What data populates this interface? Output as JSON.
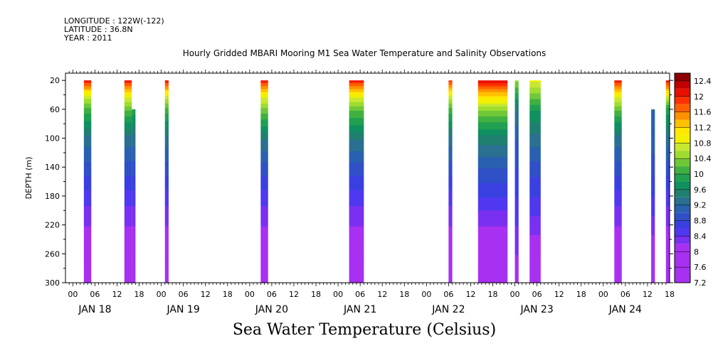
{
  "header": {
    "longitude": "LONGITUDE : 122W(-122)",
    "latitude": "LATITUDE : 36.8N",
    "year": "YEAR : 2011",
    "plot_title": "Hourly Gridded MBARI Mooring M1 Sea Water Temperature and Salinity Observations"
  },
  "chart_data": {
    "type": "heatmap",
    "title": "Sea Water Temperature (Celsius)",
    "ylabel": "DEPTH (m)",
    "xlabel": "",
    "y_ticks": [
      "20",
      "60",
      "100",
      "140",
      "180",
      "220",
      "260",
      "300"
    ],
    "ylim": [
      10,
      300
    ],
    "y_reversed": true,
    "x_start_hour": -2,
    "x_end_hour": 162,
    "hour_ticks": [
      "00",
      "06",
      "12",
      "18",
      "00",
      "06",
      "12",
      "18",
      "00",
      "06",
      "12",
      "18",
      "00",
      "06",
      "12",
      "18",
      "00",
      "06",
      "12",
      "18",
      "00",
      "06",
      "12",
      "18",
      "00",
      "06",
      "12",
      "18"
    ],
    "day_labels": [
      "JAN 18",
      "JAN 19",
      "JAN 20",
      "JAN 21",
      "JAN 22",
      "JAN 23",
      "JAN 24"
    ],
    "colorbar": {
      "levels": [
        "12.4",
        "12",
        "11.6",
        "11.2",
        "10.8",
        "10.4",
        "10",
        "9.6",
        "9.2",
        "8.8",
        "8.4",
        "8",
        "7.6",
        "7.2"
      ],
      "min": 7.2,
      "max": 12.6,
      "colors": [
        "#8b0000",
        "#c00000",
        "#e81000",
        "#ff3000",
        "#ff6000",
        "#ff9000",
        "#ffc000",
        "#ffe800",
        "#f0f000",
        "#c8e830",
        "#a0dc30",
        "#70c838",
        "#40b040",
        "#20a050",
        "#109060",
        "#208070",
        "#2a7090",
        "#2a60b0",
        "#3050c8",
        "#3a40e0",
        "#5038f0",
        "#7a30f0",
        "#a830f0",
        "#d000f0"
      ],
      "stops": [
        12.6,
        12.4,
        12.2,
        12.0,
        11.8,
        11.6,
        11.4,
        11.2,
        11.0,
        10.8,
        10.6,
        10.4,
        10.2,
        10.0,
        9.8,
        9.6,
        9.4,
        9.2,
        9.0,
        8.8,
        8.6,
        8.4,
        8.2,
        7.2
      ]
    },
    "columns": [
      {
        "start": 3,
        "end": 5,
        "profile": [
          [
            20,
            12.0
          ],
          [
            40,
            10.8
          ],
          [
            60,
            10.1
          ],
          [
            100,
            9.3
          ],
          [
            140,
            8.9
          ],
          [
            180,
            8.5
          ],
          [
            220,
            8.2
          ],
          [
            260,
            7.9
          ],
          [
            300,
            7.6
          ]
        ]
      },
      {
        "start": 14,
        "end": 16,
        "profile": [
          [
            20,
            12.0
          ],
          [
            40,
            10.9
          ],
          [
            60,
            10.2
          ],
          [
            100,
            9.3
          ],
          [
            140,
            8.9
          ],
          [
            180,
            8.5
          ],
          [
            220,
            8.2
          ],
          [
            260,
            7.9
          ],
          [
            300,
            7.5
          ]
        ]
      },
      {
        "start": 16,
        "end": 17,
        "profile": [
          [
            60,
            9.9
          ],
          [
            100,
            9.3
          ],
          [
            140,
            8.9
          ],
          [
            180,
            8.5
          ],
          [
            220,
            8.2
          ],
          [
            260,
            7.9
          ],
          [
            300,
            7.5
          ]
        ]
      },
      {
        "start": 25,
        "end": 26,
        "profile": [
          [
            20,
            12.0
          ],
          [
            40,
            10.8
          ],
          [
            60,
            10.1
          ],
          [
            100,
            9.3
          ],
          [
            140,
            8.9
          ],
          [
            180,
            8.5
          ],
          [
            220,
            8.2
          ],
          [
            260,
            7.9
          ],
          [
            300,
            7.6
          ]
        ]
      },
      {
        "start": 51,
        "end": 53,
        "profile": [
          [
            20,
            12.0
          ],
          [
            40,
            10.9
          ],
          [
            60,
            10.3
          ],
          [
            100,
            9.4
          ],
          [
            140,
            8.9
          ],
          [
            180,
            8.5
          ],
          [
            220,
            8.2
          ],
          [
            260,
            7.9
          ],
          [
            300,
            7.6
          ]
        ]
      },
      {
        "start": 75,
        "end": 79,
        "profile": [
          [
            20,
            12.0
          ],
          [
            40,
            10.9
          ],
          [
            60,
            10.2
          ],
          [
            100,
            9.4
          ],
          [
            140,
            8.9
          ],
          [
            180,
            8.5
          ],
          [
            220,
            8.2
          ],
          [
            260,
            7.8
          ],
          [
            300,
            7.5
          ]
        ]
      },
      {
        "start": 102,
        "end": 103,
        "profile": [
          [
            20,
            11.8
          ],
          [
            40,
            10.8
          ],
          [
            60,
            10.1
          ],
          [
            100,
            9.3
          ],
          [
            140,
            8.9
          ],
          [
            180,
            8.5
          ],
          [
            220,
            8.2
          ],
          [
            260,
            7.9
          ],
          [
            300,
            7.6
          ]
        ]
      },
      {
        "start": 110,
        "end": 118,
        "profile": [
          [
            20,
            12.1
          ],
          [
            40,
            11.2
          ],
          [
            60,
            10.4
          ],
          [
            100,
            9.5
          ],
          [
            140,
            9.0
          ],
          [
            180,
            8.6
          ],
          [
            220,
            8.2
          ],
          [
            260,
            7.8
          ],
          [
            300,
            7.4
          ]
        ]
      },
      {
        "start": 120,
        "end": 121,
        "profile": [
          [
            20,
            10.4
          ],
          [
            40,
            9.9
          ],
          [
            60,
            9.4
          ],
          [
            100,
            9.0
          ],
          [
            140,
            8.8
          ],
          [
            180,
            8.6
          ],
          [
            220,
            8.4
          ],
          [
            260,
            8.2
          ],
          [
            300,
            8.0
          ]
        ]
      },
      {
        "start": 124,
        "end": 127,
        "profile": [
          [
            20,
            10.8
          ],
          [
            40,
            10.3
          ],
          [
            60,
            9.8
          ],
          [
            100,
            9.3
          ],
          [
            140,
            8.9
          ],
          [
            180,
            8.6
          ],
          [
            220,
            8.3
          ],
          [
            260,
            8.0
          ],
          [
            300,
            7.7
          ]
        ]
      },
      {
        "start": 147,
        "end": 149,
        "profile": [
          [
            20,
            12.0
          ],
          [
            40,
            10.9
          ],
          [
            60,
            10.2
          ],
          [
            100,
            9.3
          ],
          [
            140,
            8.9
          ],
          [
            180,
            8.5
          ],
          [
            220,
            8.2
          ],
          [
            260,
            7.9
          ],
          [
            300,
            7.6
          ]
        ]
      },
      {
        "start": 157,
        "end": 158,
        "profile": [
          [
            60,
            9.2
          ],
          [
            100,
            9.1
          ],
          [
            140,
            8.9
          ],
          [
            180,
            8.6
          ],
          [
            220,
            8.3
          ],
          [
            260,
            8.0
          ],
          [
            300,
            7.7
          ]
        ]
      },
      {
        "start": 161,
        "end": 162,
        "profile": [
          [
            20,
            12.0
          ],
          [
            40,
            10.8
          ],
          [
            60,
            9.9
          ],
          [
            100,
            9.3
          ],
          [
            140,
            8.9
          ],
          [
            180,
            8.5
          ],
          [
            220,
            8.2
          ],
          [
            260,
            7.9
          ],
          [
            300,
            7.6
          ]
        ]
      }
    ]
  }
}
